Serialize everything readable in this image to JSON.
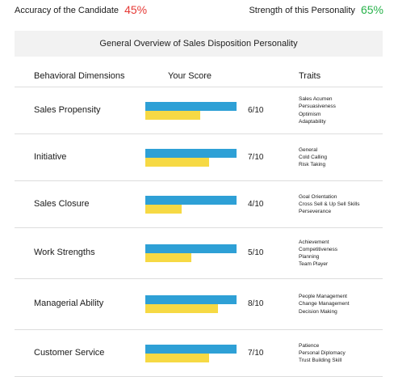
{
  "header": {
    "accuracy_label": "Accuracy of the Candidate",
    "accuracy_value": "45%",
    "strength_label": "Strength of this Personality",
    "strength_value": "65%"
  },
  "overview_title": "General Overview of Sales Disposition Personality",
  "columns": {
    "dimensions": "Behavioral Dimensions",
    "score": "Your Score",
    "traits": "Traits"
  },
  "rows": [
    {
      "dimension": "Sales Propensity",
      "score_label": "6/10",
      "score": 0.6,
      "traits": [
        "Sales Acumen",
        "Persuasiveness",
        "Optimism",
        "Adaptability"
      ]
    },
    {
      "dimension": "Initiative",
      "score_label": "7/10",
      "score": 0.7,
      "traits": [
        "General",
        "Cold Calling",
        "Risk Taking"
      ]
    },
    {
      "dimension": "Sales Closure",
      "score_label": "4/10",
      "score": 0.4,
      "traits": [
        "Goal Orientation",
        "Cross Sell & Up Sell Skills",
        "Perseverance"
      ]
    },
    {
      "dimension": "Work Strengths",
      "score_label": "5/10",
      "score": 0.5,
      "traits": [
        "Achievement",
        "Competitiveness",
        "Planning",
        "Team Player"
      ]
    },
    {
      "dimension": "Managerial Ability",
      "score_label": "8/10",
      "score": 0.8,
      "traits": [
        "People Management",
        "Change Management",
        "Decision Making"
      ]
    },
    {
      "dimension": "Customer Service",
      "score_label": "7/10",
      "score": 0.7,
      "traits": [
        "Patience",
        "Personal Diplomacy",
        "Trust Building Skill"
      ]
    }
  ],
  "colors": {
    "accuracy": "#e53935",
    "strength": "#27b24a",
    "bar_full": "#2ea0d6",
    "bar_score": "#f6d944"
  }
}
